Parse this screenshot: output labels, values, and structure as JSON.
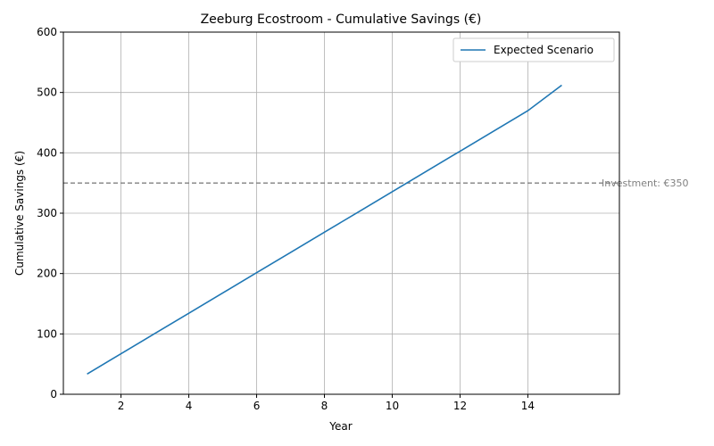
{
  "chart_data": {
    "type": "line",
    "title": "Zeeburg Ecostroom - Cumulative Savings (€)",
    "xlabel": "Year",
    "ylabel": "Cumulative Savings (€)",
    "xlim": [
      0.3,
      16.7
    ],
    "ylim": [
      0,
      600
    ],
    "xticks": [
      2,
      4,
      6,
      8,
      10,
      12,
      14
    ],
    "yticks": [
      0,
      100,
      200,
      300,
      400,
      500,
      600
    ],
    "grid": true,
    "legend_position": "top-right",
    "series": [
      {
        "name": "Expected Scenario",
        "color": "#1f77b4",
        "x": [
          1,
          2,
          3,
          4,
          5,
          6,
          7,
          8,
          9,
          10,
          11,
          12,
          13,
          14,
          15
        ],
        "y": [
          33.6,
          67.1,
          100.7,
          134.2,
          167.8,
          201.4,
          234.9,
          268.5,
          302.0,
          335.6,
          369.2,
          402.7,
          436.3,
          469.8,
          512.0
        ]
      }
    ],
    "reference_line": {
      "y": 350,
      "label": "Investment: €350",
      "color": "#808080"
    }
  }
}
